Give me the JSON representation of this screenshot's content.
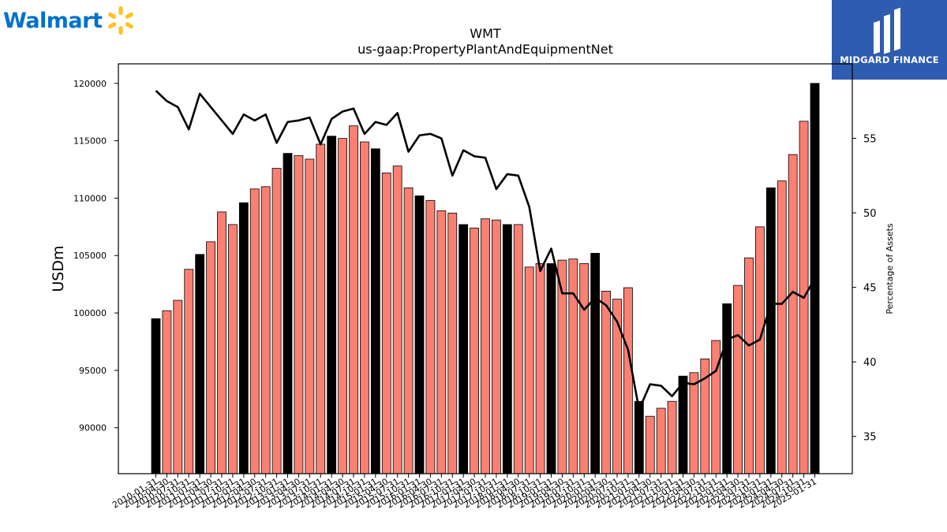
{
  "brand": {
    "left_logo_text": "Walmart",
    "right_logo_text": "MIDGARD FINANCE",
    "walmart_blue": "#0071ce",
    "walmart_yellow": "#ffc220",
    "midgard_blue": "#2e5cb0"
  },
  "chart_data": {
    "type": "bar",
    "title": "WMT",
    "subtitle": "us-gaap:PropertyPlantAndEquipmentNet",
    "ylabel": "USDm",
    "y2label": "Percentage of Assets",
    "ylim": [
      86000,
      121700
    ],
    "y2lim": [
      32.5,
      60
    ],
    "yticks": [
      90000,
      95000,
      100000,
      105000,
      110000,
      115000,
      120000
    ],
    "y2ticks": [
      35,
      40,
      45,
      50,
      55
    ],
    "bar_colors": {
      "annual": "#000000",
      "quarterly": "#fa8072"
    },
    "line_color": "#000000",
    "categories": [
      "2010-01-31",
      "2010-04-30",
      "2010-07-31",
      "2010-10-31",
      "2011-01-31",
      "2011-04-30",
      "2011-07-31",
      "2011-10-31",
      "2012-01-31",
      "2012-04-30",
      "2012-07-31",
      "2012-10-31",
      "2013-01-31",
      "2013-04-30",
      "2013-07-31",
      "2013-10-31",
      "2014-01-31",
      "2014-04-30",
      "2014-07-31",
      "2014-10-31",
      "2015-01-31",
      "2015-04-30",
      "2015-07-31",
      "2015-10-31",
      "2016-01-31",
      "2016-04-30",
      "2016-07-31",
      "2016-10-31",
      "2017-01-31",
      "2017-04-30",
      "2017-07-31",
      "2017-10-31",
      "2018-01-31",
      "2018-04-30",
      "2018-07-31",
      "2018-10-31",
      "2019-01-31",
      "2019-04-30",
      "2019-07-31",
      "2019-10-31",
      "2020-01-31",
      "2020-04-30",
      "2020-07-31",
      "2020-10-31",
      "2021-01-31",
      "2021-04-30",
      "2021-07-31",
      "2021-10-31",
      "2022-01-31",
      "2022-04-30",
      "2022-07-31",
      "2022-10-31",
      "2023-01-31",
      "2023-04-30",
      "2023-07-31",
      "2023-10-31",
      "2024-01-31",
      "2024-04-30",
      "2024-07-31",
      "2024-10-31",
      "2025-01-31"
    ],
    "bar_is_annual": [
      true,
      false,
      false,
      false,
      true,
      false,
      false,
      false,
      true,
      false,
      false,
      false,
      true,
      false,
      false,
      false,
      true,
      false,
      false,
      false,
      true,
      false,
      false,
      false,
      true,
      false,
      false,
      false,
      true,
      false,
      false,
      false,
      true,
      false,
      false,
      false,
      true,
      false,
      false,
      false,
      true,
      false,
      false,
      false,
      true,
      false,
      false,
      false,
      true,
      false,
      false,
      false,
      true,
      false,
      false,
      false,
      true,
      false,
      false,
      false,
      true
    ],
    "series": [
      {
        "kind": "bar",
        "axis": "left",
        "values": [
          99500,
          100200,
          101100,
          103800,
          105100,
          106200,
          108800,
          107700,
          109600,
          110800,
          111000,
          112600,
          113900,
          113700,
          113400,
          114700,
          115400,
          115200,
          116300,
          114900,
          114300,
          112200,
          112800,
          110900,
          110200,
          109800,
          108900,
          108700,
          107700,
          107400,
          108200,
          108100,
          107700,
          107700,
          104000,
          104300,
          104300,
          104600,
          104700,
          104300,
          105200,
          101900,
          101200,
          102200,
          92300,
          91000,
          91700,
          92300,
          94500,
          94800,
          96000,
          97600,
          100800,
          102400,
          104800,
          107500,
          110900,
          111500,
          113800,
          116700,
          120000
        ]
      },
      {
        "kind": "line",
        "axis": "right",
        "values": [
          58.2,
          57.5,
          57.1,
          55.6,
          58.0,
          57.1,
          56.2,
          55.3,
          56.6,
          56.2,
          56.6,
          54.7,
          56.1,
          56.2,
          56.4,
          54.6,
          56.3,
          56.8,
          57.0,
          55.3,
          56.1,
          55.9,
          56.7,
          54.1,
          55.2,
          55.3,
          55.0,
          52.5,
          54.2,
          53.8,
          53.7,
          51.6,
          52.6,
          52.5,
          50.4,
          46.1,
          47.6,
          44.6,
          44.6,
          43.5,
          44.3,
          43.8,
          42.7,
          40.8,
          36.8,
          38.5,
          38.4,
          37.7,
          38.6,
          38.5,
          38.9,
          39.4,
          41.5,
          41.8,
          41.1,
          41.5,
          43.9,
          43.9,
          44.7,
          44.3,
          45.6
        ]
      }
    ]
  }
}
